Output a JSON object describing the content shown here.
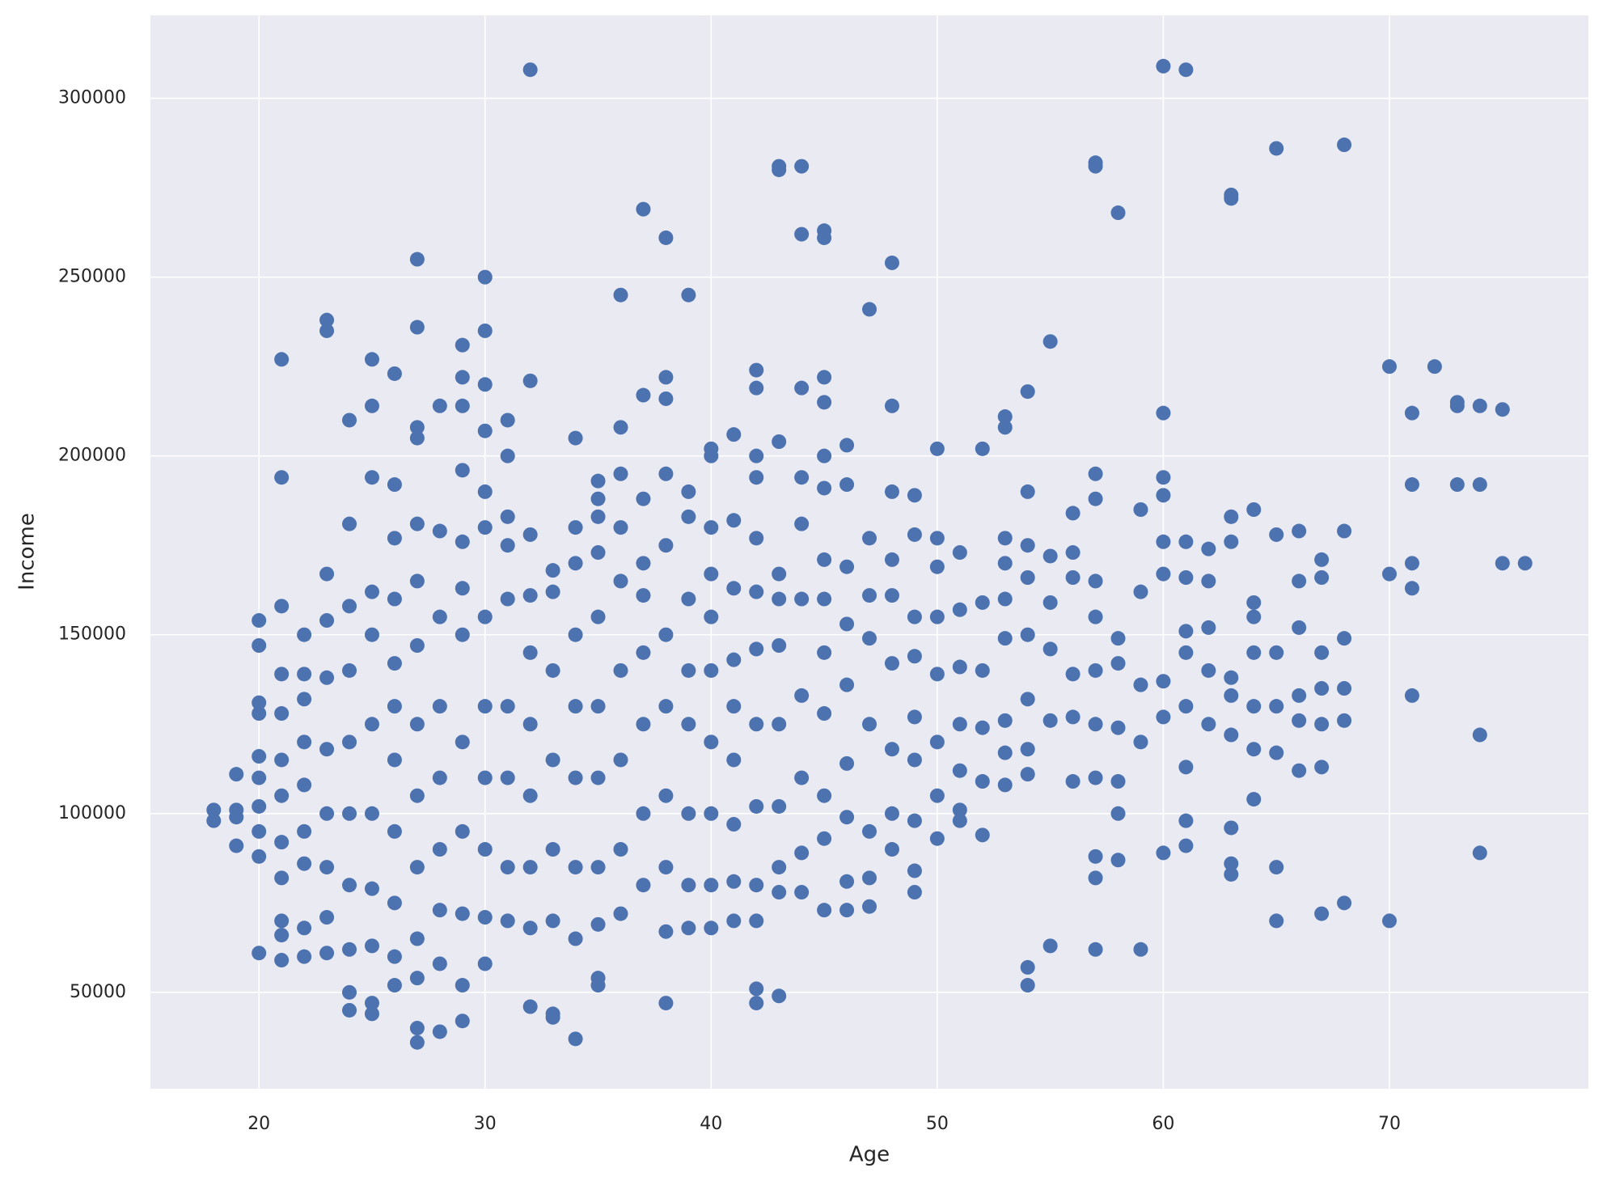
{
  "chart_data": {
    "type": "scatter",
    "xlabel": "Age",
    "ylabel": "Income",
    "color": "#4c72b0",
    "grid": true,
    "xlim": [
      15.2,
      78.8
    ],
    "ylim": [
      23050,
      323200
    ],
    "xticks": [
      20,
      30,
      40,
      50,
      60,
      70
    ],
    "yticks": [
      50000,
      100000,
      150000,
      200000,
      250000,
      300000
    ],
    "x": [
      18,
      18,
      19,
      19,
      19,
      19,
      20,
      20,
      20,
      20,
      20,
      20,
      20,
      20,
      20,
      20,
      21,
      21,
      21,
      21,
      21,
      21,
      21,
      21,
      21,
      21,
      21,
      21,
      22,
      22,
      22,
      22,
      22,
      22,
      22,
      22,
      22,
      23,
      23,
      23,
      23,
      23,
      23,
      23,
      23,
      23,
      23,
      24,
      24,
      24,
      24,
      24,
      24,
      24,
      24,
      24,
      24,
      25,
      25,
      25,
      25,
      25,
      25,
      25,
      25,
      25,
      25,
      25,
      26,
      26,
      26,
      26,
      26,
      26,
      26,
      26,
      26,
      26,
      26,
      27,
      27,
      27,
      27,
      27,
      27,
      27,
      27,
      27,
      27,
      27,
      27,
      27,
      27,
      28,
      28,
      28,
      28,
      28,
      28,
      28,
      28,
      28,
      29,
      29,
      29,
      29,
      29,
      29,
      29,
      29,
      29,
      29,
      29,
      29,
      30,
      30,
      30,
      30,
      30,
      30,
      30,
      30,
      30,
      30,
      30,
      30,
      31,
      31,
      31,
      31,
      31,
      31,
      31,
      31,
      31,
      32,
      32,
      32,
      32,
      32,
      32,
      32,
      32,
      32,
      32,
      33,
      33,
      33,
      33,
      33,
      33,
      33,
      33,
      34,
      34,
      34,
      34,
      34,
      34,
      34,
      34,
      34,
      35,
      35,
      35,
      35,
      35,
      35,
      35,
      35,
      35,
      35,
      35,
      36,
      36,
      36,
      36,
      36,
      36,
      36,
      36,
      36,
      37,
      37,
      37,
      37,
      37,
      37,
      37,
      37,
      37,
      38,
      38,
      38,
      38,
      38,
      38,
      38,
      38,
      38,
      38,
      38,
      39,
      39,
      39,
      39,
      39,
      39,
      39,
      39,
      39,
      40,
      40,
      40,
      40,
      40,
      40,
      40,
      40,
      40,
      40,
      41,
      41,
      41,
      41,
      41,
      41,
      41,
      41,
      41,
      42,
      42,
      42,
      42,
      42,
      42,
      42,
      42,
      42,
      42,
      42,
      42,
      42,
      43,
      43,
      43,
      43,
      43,
      43,
      43,
      43,
      43,
      43,
      43,
      44,
      44,
      44,
      44,
      44,
      44,
      44,
      44,
      44,
      44,
      45,
      45,
      45,
      45,
      45,
      45,
      45,
      45,
      45,
      45,
      45,
      45,
      45,
      46,
      46,
      46,
      46,
      46,
      46,
      46,
      46,
      46,
      47,
      47,
      47,
      47,
      47,
      47,
      47,
      47,
      48,
      48,
      48,
      48,
      48,
      48,
      48,
      48,
      48,
      49,
      49,
      49,
      49,
      49,
      49,
      49,
      49,
      49,
      50,
      50,
      50,
      50,
      50,
      50,
      50,
      50,
      51,
      51,
      51,
      51,
      51,
      51,
      51,
      52,
      52,
      52,
      52,
      52,
      52,
      53,
      53,
      53,
      53,
      53,
      53,
      53,
      53,
      53,
      54,
      54,
      54,
      54,
      54,
      54,
      54,
      54,
      54,
      54,
      55,
      55,
      55,
      55,
      55,
      55,
      56,
      56,
      56,
      56,
      56,
      56,
      57,
      57,
      57,
      57,
      57,
      57,
      57,
      57,
      57,
      57,
      57,
      57,
      58,
      58,
      58,
      58,
      58,
      58,
      58,
      59,
      59,
      59,
      59,
      59,
      60,
      60,
      60,
      60,
      60,
      60,
      60,
      60,
      60,
      61,
      61,
      61,
      61,
      61,
      61,
      61,
      61,
      61,
      62,
      62,
      62,
      62,
      62,
      63,
      63,
      63,
      63,
      63,
      63,
      63,
      63,
      63,
      63,
      64,
      64,
      64,
      64,
      64,
      64,
      64,
      65,
      65,
      65,
      65,
      65,
      65,
      65,
      66,
      66,
      66,
      66,
      66,
      66,
      67,
      67,
      67,
      67,
      67,
      67,
      67,
      68,
      68,
      68,
      68,
      68,
      68,
      70,
      70,
      70,
      71,
      71,
      71,
      71,
      71,
      72,
      73,
      73,
      73,
      74,
      74,
      74,
      74,
      75,
      75,
      76
    ],
    "y": [
      98000,
      101000,
      91000,
      99000,
      101000,
      111000,
      61000,
      88000,
      95000,
      102000,
      110000,
      116000,
      128000,
      131000,
      147000,
      154000,
      59000,
      66000,
      70000,
      82000,
      92000,
      105000,
      115000,
      128000,
      139000,
      158000,
      194000,
      227000,
      60000,
      68000,
      86000,
      95000,
      108000,
      120000,
      132000,
      139000,
      150000,
      61000,
      71000,
      85000,
      100000,
      118000,
      138000,
      154000,
      167000,
      235000,
      238000,
      45000,
      50000,
      62000,
      80000,
      100000,
      120000,
      140000,
      158000,
      181000,
      210000,
      44000,
      47000,
      63000,
      79000,
      100000,
      125000,
      150000,
      162000,
      194000,
      214000,
      227000,
      52000,
      60000,
      75000,
      95000,
      115000,
      130000,
      142000,
      160000,
      177000,
      192000,
      223000,
      36000,
      40000,
      54000,
      65000,
      85000,
      105000,
      125000,
      147000,
      165000,
      181000,
      205000,
      208000,
      236000,
      255000,
      39000,
      58000,
      73000,
      90000,
      110000,
      130000,
      155000,
      179000,
      214000,
      42000,
      52000,
      72000,
      95000,
      120000,
      150000,
      163000,
      176000,
      196000,
      214000,
      222000,
      231000,
      58000,
      71000,
      90000,
      110000,
      130000,
      155000,
      180000,
      190000,
      207000,
      220000,
      235000,
      250000,
      70000,
      85000,
      110000,
      130000,
      160000,
      175000,
      183000,
      200000,
      210000,
      46000,
      68000,
      85000,
      105000,
      125000,
      145000,
      161000,
      178000,
      221000,
      308000,
      43000,
      44000,
      70000,
      90000,
      115000,
      140000,
      162000,
      168000,
      37000,
      65000,
      85000,
      110000,
      130000,
      150000,
      170000,
      180000,
      205000,
      52000,
      54000,
      69000,
      85000,
      110000,
      130000,
      155000,
      173000,
      183000,
      188000,
      193000,
      72000,
      90000,
      115000,
      140000,
      165000,
      180000,
      195000,
      208000,
      245000,
      80000,
      100000,
      125000,
      145000,
      161000,
      170000,
      188000,
      217000,
      269000,
      47000,
      67000,
      85000,
      105000,
      130000,
      150000,
      175000,
      195000,
      216000,
      222000,
      261000,
      68000,
      80000,
      100000,
      125000,
      140000,
      160000,
      183000,
      190000,
      245000,
      68000,
      80000,
      100000,
      120000,
      140000,
      155000,
      167000,
      180000,
      200000,
      202000,
      70000,
      81000,
      97000,
      115000,
      130000,
      143000,
      163000,
      182000,
      206000,
      47000,
      51000,
      70000,
      80000,
      102000,
      125000,
      146000,
      162000,
      177000,
      194000,
      200000,
      219000,
      224000,
      49000,
      78000,
      85000,
      102000,
      125000,
      147000,
      160000,
      167000,
      204000,
      280000,
      281000,
      78000,
      89000,
      110000,
      133000,
      160000,
      181000,
      194000,
      219000,
      262000,
      281000,
      73000,
      93000,
      105000,
      128000,
      145000,
      160000,
      171000,
      191000,
      200000,
      215000,
      222000,
      261000,
      263000,
      73000,
      81000,
      99000,
      114000,
      136000,
      153000,
      169000,
      192000,
      203000,
      74000,
      82000,
      95000,
      125000,
      149000,
      161000,
      177000,
      241000,
      90000,
      100000,
      118000,
      142000,
      161000,
      171000,
      190000,
      214000,
      254000,
      78000,
      84000,
      98000,
      115000,
      127000,
      144000,
      155000,
      178000,
      189000,
      93000,
      105000,
      120000,
      139000,
      155000,
      169000,
      177000,
      202000,
      98000,
      101000,
      112000,
      125000,
      141000,
      157000,
      173000,
      94000,
      109000,
      124000,
      140000,
      159000,
      202000,
      108000,
      117000,
      126000,
      149000,
      160000,
      170000,
      177000,
      208000,
      211000,
      52000,
      57000,
      111000,
      118000,
      132000,
      150000,
      166000,
      175000,
      190000,
      218000,
      63000,
      126000,
      146000,
      159000,
      172000,
      232000,
      109000,
      127000,
      139000,
      166000,
      173000,
      184000,
      62000,
      82000,
      88000,
      110000,
      125000,
      140000,
      155000,
      165000,
      188000,
      195000,
      281000,
      282000,
      87000,
      100000,
      109000,
      124000,
      142000,
      149000,
      268000,
      62000,
      120000,
      136000,
      162000,
      185000,
      89000,
      127000,
      137000,
      167000,
      176000,
      189000,
      194000,
      212000,
      309000,
      91000,
      98000,
      113000,
      130000,
      145000,
      151000,
      166000,
      176000,
      308000,
      125000,
      140000,
      152000,
      165000,
      174000,
      83000,
      86000,
      96000,
      122000,
      133000,
      138000,
      176000,
      183000,
      272000,
      273000,
      104000,
      118000,
      130000,
      145000,
      155000,
      159000,
      185000,
      70000,
      85000,
      117000,
      130000,
      145000,
      178000,
      286000,
      112000,
      126000,
      133000,
      152000,
      165000,
      179000,
      72000,
      113000,
      125000,
      135000,
      145000,
      166000,
      171000,
      75000,
      126000,
      135000,
      149000,
      179000,
      287000,
      70000,
      167000,
      225000,
      133000,
      163000,
      170000,
      192000,
      212000,
      225000,
      192000,
      214000,
      215000,
      89000,
      122000,
      192000,
      214000,
      170000,
      213000,
      170000
    ]
  }
}
